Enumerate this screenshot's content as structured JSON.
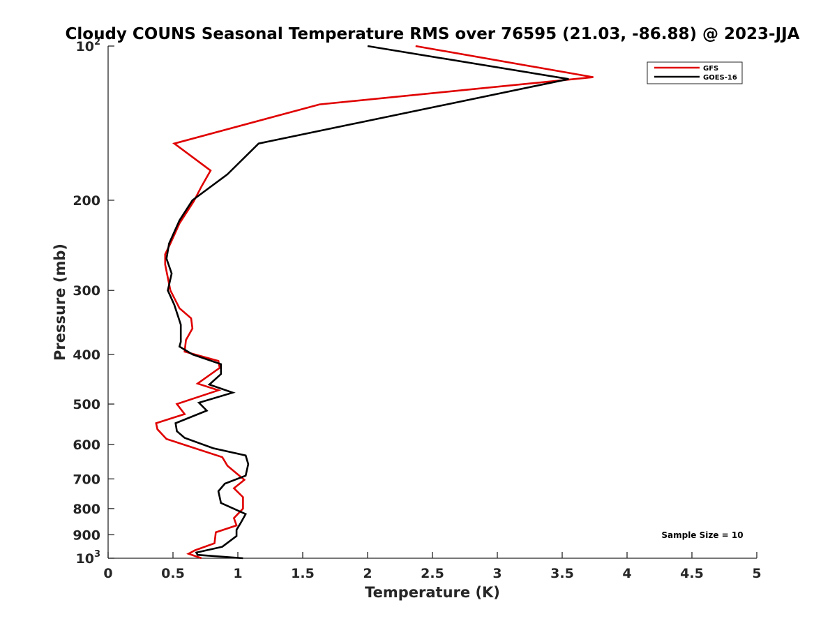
{
  "chart_data": {
    "type": "line",
    "title": "Cloudy COUNS Seasonal Temperature RMS over 76595 (21.03, -86.88) @ 2023-JJA",
    "xlabel": "Temperature (K)",
    "ylabel": "Pressure (mb)",
    "xlim": [
      0,
      5
    ],
    "ylim": [
      100,
      1000
    ],
    "yscale": "log",
    "y_reversed": true,
    "x_ticks": [
      "0",
      "0.5",
      "1",
      "1.5",
      "2",
      "2.5",
      "3",
      "3.5",
      "4",
      "4.5",
      "5"
    ],
    "x_tick_values": [
      0,
      0.5,
      1,
      1.5,
      2,
      2.5,
      3,
      3.5,
      4,
      4.5,
      5
    ],
    "y_ticks": [
      {
        "value": 100,
        "base": "10",
        "exp": "2"
      },
      {
        "value": 200,
        "label": "200"
      },
      {
        "value": 300,
        "label": "300"
      },
      {
        "value": 400,
        "label": "400"
      },
      {
        "value": 500,
        "label": "500"
      },
      {
        "value": 600,
        "label": "600"
      },
      {
        "value": 700,
        "label": "700"
      },
      {
        "value": 800,
        "label": "800"
      },
      {
        "value": 900,
        "label": "900"
      },
      {
        "value": 1000,
        "base": "10",
        "exp": "3"
      }
    ],
    "legend_position": "top-right",
    "annotation": "Sample Size = 10",
    "series": [
      {
        "name": "GFS",
        "color": "#e00000",
        "points": [
          [
            2.37,
            100
          ],
          [
            3.74,
            115
          ],
          [
            1.63,
            130
          ],
          [
            0.51,
            155
          ],
          [
            0.79,
            175
          ],
          [
            0.72,
            188
          ],
          [
            0.66,
            201
          ],
          [
            0.55,
            222
          ],
          [
            0.48,
            243
          ],
          [
            0.44,
            255
          ],
          [
            0.44,
            267
          ],
          [
            0.48,
            300
          ],
          [
            0.55,
            325
          ],
          [
            0.64,
            340
          ],
          [
            0.65,
            356
          ],
          [
            0.6,
            375
          ],
          [
            0.59,
            395
          ],
          [
            0.85,
            412
          ],
          [
            0.86,
            425
          ],
          [
            0.69,
            456
          ],
          [
            0.85,
            470
          ],
          [
            0.53,
            500
          ],
          [
            0.59,
            523
          ],
          [
            0.37,
            545
          ],
          [
            0.38,
            560
          ],
          [
            0.45,
            585
          ],
          [
            0.88,
            635
          ],
          [
            0.92,
            660
          ],
          [
            1.05,
            703
          ],
          [
            0.97,
            730
          ],
          [
            1.04,
            760
          ],
          [
            1.04,
            800
          ],
          [
            0.97,
            835
          ],
          [
            0.99,
            863
          ],
          [
            0.83,
            890
          ],
          [
            0.82,
            935
          ],
          [
            0.67,
            965
          ],
          [
            0.62,
            980
          ],
          [
            0.72,
            1000
          ]
        ]
      },
      {
        "name": "GOES-16",
        "color": "#000000",
        "points": [
          [
            2.0,
            100
          ],
          [
            3.55,
            116
          ],
          [
            1.16,
            155
          ],
          [
            0.92,
            178
          ],
          [
            0.65,
            200
          ],
          [
            0.55,
            219
          ],
          [
            0.47,
            243
          ],
          [
            0.45,
            260
          ],
          [
            0.49,
            278
          ],
          [
            0.46,
            300
          ],
          [
            0.51,
            320
          ],
          [
            0.56,
            350
          ],
          [
            0.56,
            378
          ],
          [
            0.55,
            386
          ],
          [
            0.65,
            400
          ],
          [
            0.87,
            418
          ],
          [
            0.87,
            437
          ],
          [
            0.78,
            458
          ],
          [
            0.96,
            475
          ],
          [
            0.7,
            497
          ],
          [
            0.76,
            515
          ],
          [
            0.52,
            545
          ],
          [
            0.53,
            565
          ],
          [
            0.59,
            582
          ],
          [
            0.81,
            610
          ],
          [
            1.06,
            630
          ],
          [
            1.08,
            655
          ],
          [
            1.06,
            690
          ],
          [
            0.9,
            715
          ],
          [
            0.85,
            740
          ],
          [
            0.87,
            780
          ],
          [
            1.06,
            820
          ],
          [
            1.02,
            855
          ],
          [
            0.99,
            880
          ],
          [
            0.99,
            905
          ],
          [
            0.88,
            950
          ],
          [
            0.68,
            975
          ],
          [
            0.69,
            985
          ],
          [
            1.04,
            1000
          ]
        ]
      }
    ]
  }
}
